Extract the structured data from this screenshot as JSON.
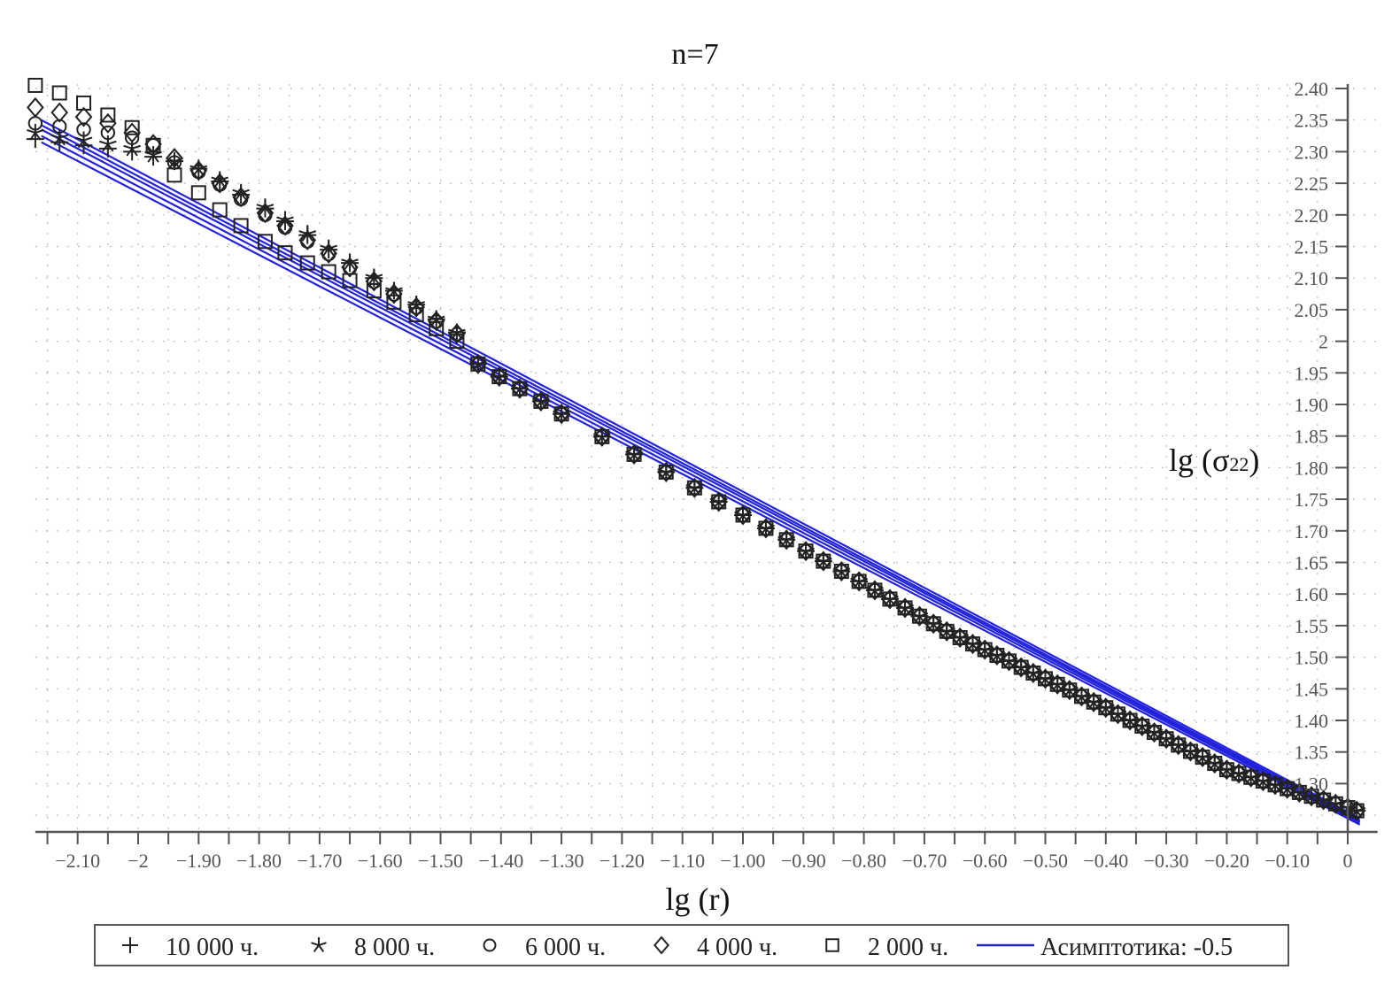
{
  "chart_data": {
    "type": "scatter",
    "title": "n=7",
    "xlabel": "lg (r)",
    "ylabel": "lg (σ22)",
    "ylabel_main": "lg (σ",
    "ylabel_sub": "22",
    "ylabel_close": ")",
    "xlim": [
      -2.17,
      0.02
    ],
    "ylim": [
      1.224,
      2.407
    ],
    "grid": true,
    "legend_position": "bottom",
    "x_ticks": [
      -2.1,
      -2.0,
      -1.9,
      -1.8,
      -1.7,
      -1.6,
      -1.5,
      -1.4,
      -1.3,
      -1.2,
      -1.1,
      -1.0,
      -0.9,
      -0.8,
      -0.7,
      -0.6,
      -0.5,
      -0.4,
      -0.3,
      -0.2,
      -0.1,
      0
    ],
    "x_tick_labels": [
      "−2.10",
      "−2",
      "−1.90",
      "−1.80",
      "−1.70",
      "−1.60",
      "−1.50",
      "−1.40",
      "−1.30",
      "−1.20",
      "−1.10",
      "−1.00",
      "−0.90",
      "−0.80",
      "−0.70",
      "−0.60",
      "−0.50",
      "−0.40",
      "−0.30",
      "−0.20",
      "−0.10",
      "0"
    ],
    "y_ticks": [
      2.4,
      2.35,
      2.3,
      2.25,
      2.2,
      2.15,
      2.1,
      2.05,
      2.0,
      1.95,
      1.9,
      1.85,
      1.8,
      1.75,
      1.7,
      1.65,
      1.6,
      1.55,
      1.5,
      1.45,
      1.4,
      1.35,
      1.3
    ],
    "y_tick_labels": [
      "2.40",
      "2.35",
      "2.30",
      "2.25",
      "2.20",
      "2.15",
      "2.10",
      "2.05",
      "2",
      "1.95",
      "1.90",
      "1.85",
      "1.80",
      "1.75",
      "1.70",
      "1.65",
      "1.60",
      "1.55",
      "1.50",
      "1.45",
      "1.40",
      "1.35",
      "1.30"
    ],
    "x": [
      -2.17,
      -2.13,
      -2.09,
      -2.05,
      -2.01,
      -1.975,
      -1.94,
      -1.9,
      -1.865,
      -1.83,
      -1.79,
      -1.757,
      -1.72,
      -1.685,
      -1.65,
      -1.61,
      -1.577,
      -1.54,
      -1.507,
      -1.473,
      -1.438,
      -1.403,
      -1.369,
      -1.334,
      -1.3,
      -1.233,
      -1.18,
      -1.127,
      -1.08,
      -1.04,
      -1.0,
      -0.962,
      -0.928,
      -0.896,
      -0.867,
      -0.837,
      -0.808,
      -0.782,
      -0.757,
      -0.732,
      -0.708,
      -0.685,
      -0.663,
      -0.641,
      -0.62,
      -0.6,
      -0.58,
      -0.56,
      -0.54,
      -0.52,
      -0.5,
      -0.48,
      -0.46,
      -0.44,
      -0.42,
      -0.4,
      -0.38,
      -0.36,
      -0.34,
      -0.32,
      -0.3,
      -0.28,
      -0.26,
      -0.24,
      -0.22,
      -0.2,
      -0.18,
      -0.16,
      -0.14,
      -0.12,
      -0.1,
      -0.08,
      -0.06,
      -0.04,
      -0.02,
      0,
      0.015
    ],
    "series": [
      {
        "name": "10 000 ч.",
        "marker": "plus",
        "y": [
          2.32,
          2.315,
          2.31,
          2.305,
          2.3,
          2.292,
          2.285,
          2.273,
          2.253,
          2.232,
          2.21,
          2.19,
          2.168,
          2.145,
          2.124,
          2.1,
          2.08,
          2.058,
          2.035,
          2.014,
          1.964,
          1.944,
          1.925,
          1.905,
          1.885,
          1.849,
          1.821,
          1.793,
          1.768,
          1.746,
          1.725,
          1.704,
          1.686,
          1.668,
          1.652,
          1.636,
          1.62,
          1.606,
          1.592,
          1.578,
          1.565,
          1.553,
          1.541,
          1.531,
          1.521,
          1.512,
          1.503,
          1.494,
          1.484,
          1.475,
          1.466,
          1.457,
          1.448,
          1.438,
          1.429,
          1.42,
          1.41,
          1.4,
          1.391,
          1.381,
          1.371,
          1.361,
          1.351,
          1.342,
          1.332,
          1.322,
          1.316,
          1.31,
          1.304,
          1.298,
          1.292,
          1.286,
          1.28,
          1.274,
          1.268,
          1.262,
          1.257
        ]
      },
      {
        "name": "8 000 ч.",
        "marker": "star",
        "y": [
          2.33,
          2.322,
          2.318,
          2.312,
          2.305,
          2.295,
          2.285,
          2.273,
          2.255,
          2.235,
          2.212,
          2.192,
          2.17,
          2.147,
          2.125,
          2.101,
          2.08,
          2.058,
          2.035,
          2.014,
          1.964,
          1.944,
          1.925,
          1.905,
          1.885,
          1.849,
          1.821,
          1.793,
          1.768,
          1.746,
          1.725,
          1.704,
          1.686,
          1.668,
          1.652,
          1.636,
          1.62,
          1.606,
          1.592,
          1.578,
          1.565,
          1.553,
          1.541,
          1.531,
          1.521,
          1.512,
          1.503,
          1.494,
          1.484,
          1.475,
          1.466,
          1.457,
          1.448,
          1.438,
          1.429,
          1.42,
          1.41,
          1.4,
          1.391,
          1.381,
          1.371,
          1.361,
          1.351,
          1.342,
          1.332,
          1.322,
          1.316,
          1.31,
          1.304,
          1.298,
          1.292,
          1.286,
          1.28,
          1.274,
          1.268,
          1.262,
          1.257
        ]
      },
      {
        "name": "6 000 ч.",
        "marker": "circle",
        "y": [
          2.345,
          2.34,
          2.335,
          2.33,
          2.322,
          2.31,
          2.283,
          2.268,
          2.248,
          2.225,
          2.2,
          2.18,
          2.158,
          2.138,
          2.116,
          2.094,
          2.074,
          2.053,
          2.031,
          2.011,
          1.964,
          1.944,
          1.925,
          1.905,
          1.885,
          1.849,
          1.821,
          1.793,
          1.768,
          1.746,
          1.725,
          1.704,
          1.686,
          1.668,
          1.652,
          1.636,
          1.62,
          1.606,
          1.592,
          1.578,
          1.565,
          1.553,
          1.541,
          1.531,
          1.521,
          1.512,
          1.503,
          1.494,
          1.484,
          1.475,
          1.466,
          1.457,
          1.448,
          1.438,
          1.429,
          1.42,
          1.41,
          1.4,
          1.391,
          1.381,
          1.371,
          1.361,
          1.351,
          1.342,
          1.332,
          1.322,
          1.316,
          1.31,
          1.304,
          1.298,
          1.292,
          1.286,
          1.28,
          1.274,
          1.268,
          1.262,
          1.257
        ]
      },
      {
        "name": "4 000 ч.",
        "marker": "diamond",
        "y": [
          2.37,
          2.362,
          2.355,
          2.345,
          2.33,
          2.312,
          2.29,
          2.27,
          2.25,
          2.228,
          2.203,
          2.183,
          2.16,
          2.139,
          2.117,
          2.095,
          2.075,
          2.054,
          2.032,
          2.012,
          1.964,
          1.944,
          1.925,
          1.905,
          1.885,
          1.849,
          1.821,
          1.793,
          1.768,
          1.746,
          1.725,
          1.704,
          1.686,
          1.668,
          1.652,
          1.636,
          1.62,
          1.606,
          1.592,
          1.578,
          1.565,
          1.553,
          1.541,
          1.531,
          1.521,
          1.512,
          1.503,
          1.494,
          1.484,
          1.475,
          1.466,
          1.457,
          1.448,
          1.438,
          1.429,
          1.42,
          1.41,
          1.4,
          1.391,
          1.381,
          1.371,
          1.361,
          1.351,
          1.342,
          1.332,
          1.322,
          1.316,
          1.31,
          1.304,
          1.298,
          1.292,
          1.286,
          1.28,
          1.274,
          1.268,
          1.262,
          1.257
        ]
      },
      {
        "name": "2 000 ч.",
        "marker": "square",
        "y": [
          2.405,
          2.393,
          2.377,
          2.358,
          2.338,
          2.31,
          2.263,
          2.235,
          2.208,
          2.183,
          2.158,
          2.14,
          2.124,
          2.11,
          2.096,
          2.08,
          2.062,
          2.042,
          2.02,
          2.0,
          1.964,
          1.944,
          1.925,
          1.905,
          1.885,
          1.849,
          1.821,
          1.793,
          1.768,
          1.746,
          1.725,
          1.704,
          1.686,
          1.668,
          1.652,
          1.636,
          1.62,
          1.606,
          1.592,
          1.578,
          1.565,
          1.553,
          1.541,
          1.531,
          1.521,
          1.512,
          1.503,
          1.494,
          1.484,
          1.475,
          1.466,
          1.457,
          1.448,
          1.438,
          1.429,
          1.42,
          1.41,
          1.4,
          1.391,
          1.381,
          1.371,
          1.361,
          1.351,
          1.342,
          1.332,
          1.322,
          1.316,
          1.31,
          1.304,
          1.298,
          1.292,
          1.286,
          1.28,
          1.274,
          1.268,
          1.262,
          1.257
        ]
      }
    ],
    "asymptote": {
      "name": "Асимптотика: -0.5",
      "slope": -0.5,
      "color": "#2222dd",
      "lines": [
        [
          [
            -2.16,
            2.35
          ],
          [
            0.02,
            1.245
          ]
        ],
        [
          [
            -2.16,
            2.342
          ],
          [
            0.02,
            1.242
          ]
        ],
        [
          [
            -2.16,
            2.335
          ],
          [
            0.02,
            1.24
          ]
        ],
        [
          [
            -2.16,
            2.325
          ],
          [
            0.02,
            1.238
          ]
        ],
        [
          [
            -2.16,
            2.315
          ],
          [
            0.02,
            1.235
          ]
        ]
      ]
    },
    "colors": {
      "marker": "#222222",
      "grid": "#bbbbbb",
      "axis": "#555555"
    }
  }
}
